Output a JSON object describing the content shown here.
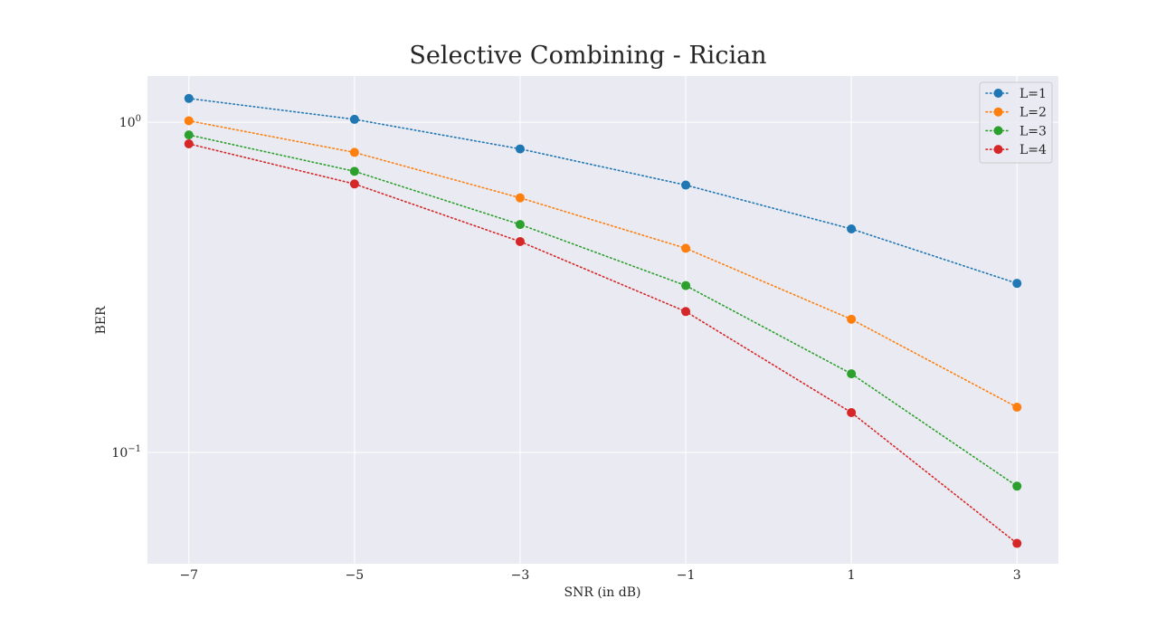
{
  "chart_data": {
    "type": "line",
    "title": "Selective Combining - Rician",
    "xlabel": "SNR (in dB)",
    "ylabel": "BER",
    "y_scale": "log",
    "grid": true,
    "legend_position": "top-right",
    "x": [
      -7,
      -5,
      -3,
      -1,
      1,
      3
    ],
    "x_tick_labels": [
      "−7",
      "−5",
      "−3",
      "−1",
      "1",
      "3"
    ],
    "y_ticks": [
      {
        "value": 1,
        "base": "10",
        "exponent": "0"
      },
      {
        "value": 0.1,
        "base": "10",
        "exponent": "−1"
      }
    ],
    "xlim": [
      -7.5,
      3.5
    ],
    "ylim": [
      0.046,
      1.38
    ],
    "series": [
      {
        "name": "L=1",
        "color": "#1f77b4",
        "values": [
          1.18,
          1.02,
          0.83,
          0.645,
          0.475,
          0.325
        ]
      },
      {
        "name": "L=2",
        "color": "#ff7f0e",
        "values": [
          1.01,
          0.81,
          0.59,
          0.415,
          0.253,
          0.137
        ]
      },
      {
        "name": "L=3",
        "color": "#2ca02c",
        "values": [
          0.915,
          0.71,
          0.49,
          0.32,
          0.173,
          0.079
        ]
      },
      {
        "name": "L=4",
        "color": "#d62728",
        "values": [
          0.86,
          0.65,
          0.435,
          0.267,
          0.132,
          0.053
        ]
      }
    ]
  }
}
